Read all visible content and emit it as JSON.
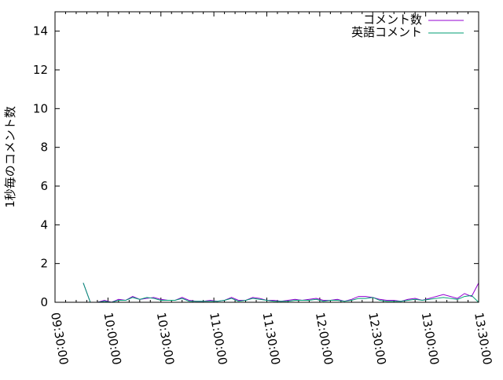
{
  "chart_data": {
    "type": "line",
    "title": "",
    "xlabel": "",
    "ylabel": "1秒毎のコメント数",
    "xlim": [
      "09:30:00",
      "13:30:00"
    ],
    "ylim": [
      0,
      15
    ],
    "grid": false,
    "legend_position": "top-right",
    "x_ticks": [
      "09:30:00",
      "10:00:00",
      "10:30:00",
      "11:00:00",
      "11:30:00",
      "12:00:00",
      "12:30:00",
      "13:00:00",
      "13:30:00"
    ],
    "y_ticks": [
      "0",
      "2",
      "4",
      "6",
      "8",
      "10",
      "12",
      "14"
    ],
    "x": [
      "09:46",
      "09:50",
      "09:54",
      "09:58",
      "10:02",
      "10:06",
      "10:10",
      "10:14",
      "10:18",
      "10:22",
      "10:26",
      "10:30",
      "10:34",
      "10:38",
      "10:42",
      "10:46",
      "10:50",
      "10:54",
      "10:58",
      "11:02",
      "11:06",
      "11:10",
      "11:14",
      "11:18",
      "11:22",
      "11:26",
      "11:30",
      "11:34",
      "11:38",
      "11:42",
      "11:46",
      "11:50",
      "11:54",
      "11:58",
      "12:02",
      "12:06",
      "12:10",
      "12:14",
      "12:18",
      "12:22",
      "12:26",
      "12:30",
      "12:34",
      "12:38",
      "12:42",
      "12:46",
      "12:50",
      "12:54",
      "12:58",
      "13:02",
      "13:06",
      "13:10",
      "13:14",
      "13:18",
      "13:22",
      "13:26",
      "13:30"
    ],
    "series": [
      {
        "name": "コメント数",
        "color": "#9400d3",
        "values": [
          1.0,
          0,
          0,
          0.1,
          0,
          0.15,
          0.1,
          0.3,
          0.15,
          0.2,
          0.25,
          0.15,
          0.1,
          0.1,
          0.25,
          0.1,
          0.05,
          0.05,
          0.1,
          0.05,
          0.1,
          0.25,
          0.1,
          0.1,
          0.25,
          0.2,
          0.1,
          0.1,
          0.05,
          0.1,
          0.15,
          0.1,
          0.15,
          0.2,
          0.1,
          0.1,
          0.15,
          0.05,
          0.15,
          0.3,
          0.3,
          0.25,
          0.15,
          0.1,
          0.1,
          0.05,
          0.15,
          0.2,
          0.1,
          0.2,
          0.3,
          0.4,
          0.3,
          0.2,
          0.45,
          0.3,
          1.0
        ]
      },
      {
        "name": "英語コメント",
        "color": "#009e73",
        "values": [
          1.0,
          0,
          0,
          0.05,
          0,
          0.1,
          0.1,
          0.25,
          0.15,
          0.25,
          0.2,
          0.1,
          0.1,
          0.1,
          0.2,
          0.05,
          0.05,
          0.05,
          0.05,
          0.05,
          0.1,
          0.2,
          0.05,
          0.1,
          0.2,
          0.15,
          0.1,
          0.05,
          0.05,
          0.05,
          0.1,
          0.1,
          0.1,
          0.15,
          0.05,
          0.1,
          0.1,
          0.05,
          0.1,
          0.2,
          0.2,
          0.25,
          0.1,
          0.05,
          0.05,
          0.05,
          0.1,
          0.15,
          0.1,
          0.15,
          0.2,
          0.25,
          0.2,
          0.15,
          0.3,
          0.35,
          0
        ]
      }
    ]
  }
}
